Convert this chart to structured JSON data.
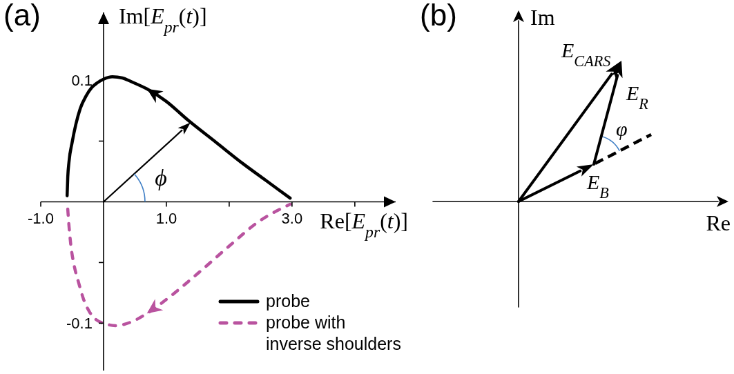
{
  "chart_data": [
    {
      "type": "line",
      "title": "(a)",
      "xlabel": "Re[E$_{pr}$(t)]",
      "ylabel": "Im[E$_{pr}$(t)]",
      "annotations": [
        "ϕ"
      ],
      "xlim": [
        -1.0,
        4.65
      ],
      "ylim": [
        -0.139,
        0.156
      ],
      "xticks": [
        {
          "value": -1.0,
          "label": "-1.0"
        },
        {
          "value": 1.0,
          "label": "1.0"
        },
        {
          "value": 2.0,
          "label": null
        },
        {
          "value": 3.0,
          "label": "3.0"
        },
        {
          "value": 4.0,
          "label": null
        }
      ],
      "yticks": [
        {
          "value": -0.1,
          "label": "-0.1"
        },
        {
          "value": -0.05,
          "label": null
        },
        {
          "value": 0.05,
          "label": null
        },
        {
          "value": 0.1,
          "label": "0.1"
        }
      ],
      "legend": "bottom right",
      "marker": "none",
      "series": [
        {
          "name": "probe",
          "color": "#000000",
          "line_style": "solid",
          "x": [
            -0.58,
            -0.57,
            -0.55,
            -0.5,
            -0.44,
            -0.37,
            -0.28,
            -0.19,
            -0.1,
            0,
            0.14,
            0.3,
            0.44,
            0.69,
            0.99,
            1.35,
            1.79,
            2.23,
            2.6,
            2.97
          ],
          "values": [
            0.005,
            0.02,
            0.033,
            0.049,
            0.064,
            0.077,
            0.087,
            0.094,
            0.098,
            0.101,
            0.103,
            0.102,
            0.099,
            0.093,
            0.083,
            0.067,
            0.049,
            0.031,
            0.017,
            0.003
          ]
        },
        {
          "name": "probe with inverse shoulders",
          "color": "#b9539f",
          "line_style": "dashed",
          "x": [
            -0.57,
            -0.55,
            -0.52,
            -0.47,
            -0.4,
            -0.32,
            -0.22,
            -0.12,
            0,
            0.19,
            0.44,
            0.69,
            1.06,
            1.5,
            2.01,
            2.45,
            2.97
          ],
          "values": [
            -0.006,
            -0.02,
            -0.036,
            -0.052,
            -0.066,
            -0.08,
            -0.091,
            -0.097,
            -0.1,
            -0.102,
            -0.099,
            -0.092,
            -0.078,
            -0.059,
            -0.036,
            -0.017,
            -0.002
          ]
        }
      ]
    },
    {
      "type": "other",
      "title": "(b)",
      "xlabel": "Re",
      "ylabel": "Im",
      "annotations": [
        "E$_{CARS}$",
        "E$_{R}$",
        "φ",
        "E$_{B}$"
      ]
    }
  ]
}
